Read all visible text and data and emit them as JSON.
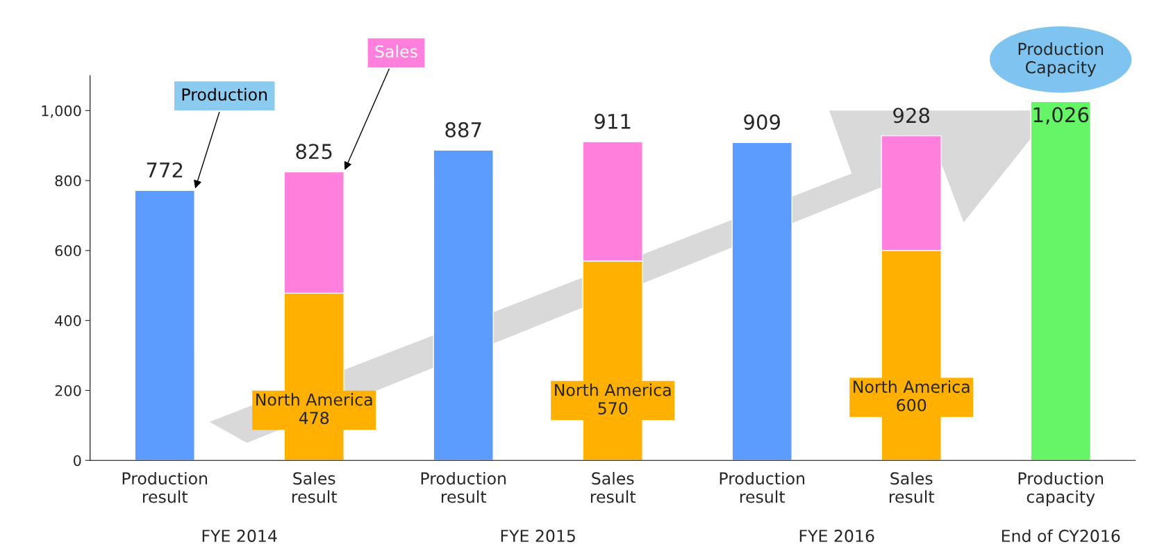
{
  "chart_data": {
    "type": "bar",
    "stacked": true,
    "categories": [
      "Production\nresult",
      "Sales\nresult",
      "Production\nresult",
      "Sales\nresult",
      "Production\nresult",
      "Sales\nresult",
      "Production\ncapacity"
    ],
    "series": [
      {
        "name": "Production",
        "color": "#5c9cff",
        "values": [
          772,
          null,
          887,
          null,
          909,
          null,
          null
        ]
      },
      {
        "name": "North America",
        "color": "#ffb000",
        "values": [
          null,
          478,
          null,
          570,
          null,
          600,
          null
        ],
        "value_labels": [
          null,
          "478",
          null,
          "570",
          null,
          "600",
          null
        ]
      },
      {
        "name": "Sales",
        "color": "#ff80dc",
        "values": [
          null,
          347,
          null,
          341,
          null,
          328,
          null
        ]
      },
      {
        "name": "Production\nCapacity",
        "color": "#66f566",
        "values": [
          null,
          null,
          null,
          null,
          null,
          null,
          1026
        ]
      }
    ],
    "totals": [
      "772",
      "825",
      "887",
      "911",
      "909",
      "928",
      "1,026"
    ],
    "ylim": [
      0,
      1100
    ],
    "yticks": [
      0,
      200,
      400,
      600,
      800,
      {
        "value": 1000,
        "label": "1,000"
      }
    ],
    "grid": false,
    "legend": false,
    "annotations": [
      "FYE 2014",
      "FYE 2015",
      "FYE 2016",
      "End of CY2016"
    ]
  }
}
